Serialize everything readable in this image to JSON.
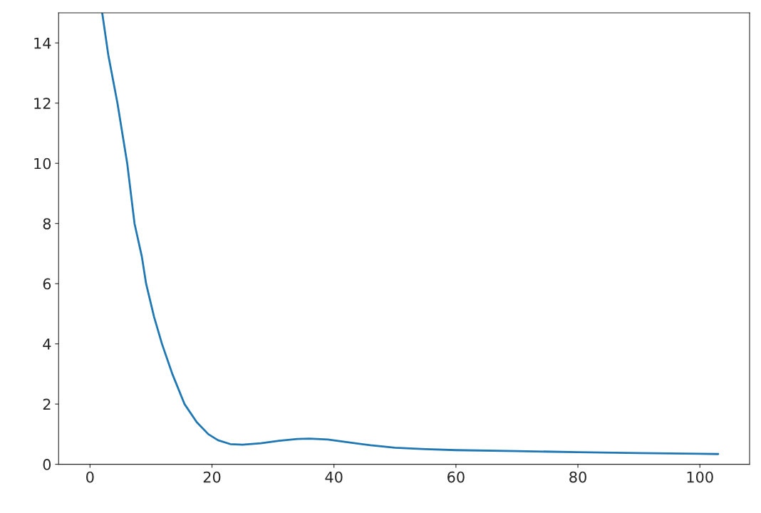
{
  "chart_data": {
    "type": "line",
    "series": [
      {
        "color": "#1f77b4",
        "x": [
          2,
          3,
          4.5,
          6.1,
          7.3,
          8.5,
          9.2,
          10.5,
          11.8,
          13.5,
          15.5,
          17.5,
          19.4,
          21,
          23,
          25,
          28,
          31,
          34,
          36,
          39,
          42,
          46,
          50,
          55,
          60,
          70,
          80,
          90,
          100,
          103
        ],
        "values": [
          15,
          13.6,
          12,
          10,
          8,
          6.9,
          6,
          4.9,
          4,
          3,
          2,
          1.4,
          1,
          0.8,
          0.67,
          0.65,
          0.7,
          0.78,
          0.84,
          0.85,
          0.82,
          0.74,
          0.63,
          0.55,
          0.5,
          0.47,
          0.44,
          0.4,
          0.37,
          0.35,
          0.34
        ]
      }
    ],
    "xlim": [
      -5.15,
      108.15
    ],
    "xticks": [
      0,
      20,
      40,
      60,
      80,
      100
    ],
    "ylim": [
      0,
      15
    ],
    "yticks": [
      0,
      2,
      4,
      6,
      8,
      10,
      12,
      14
    ],
    "grid": false,
    "legend": false,
    "line_style": "solid",
    "marker": "none"
  }
}
